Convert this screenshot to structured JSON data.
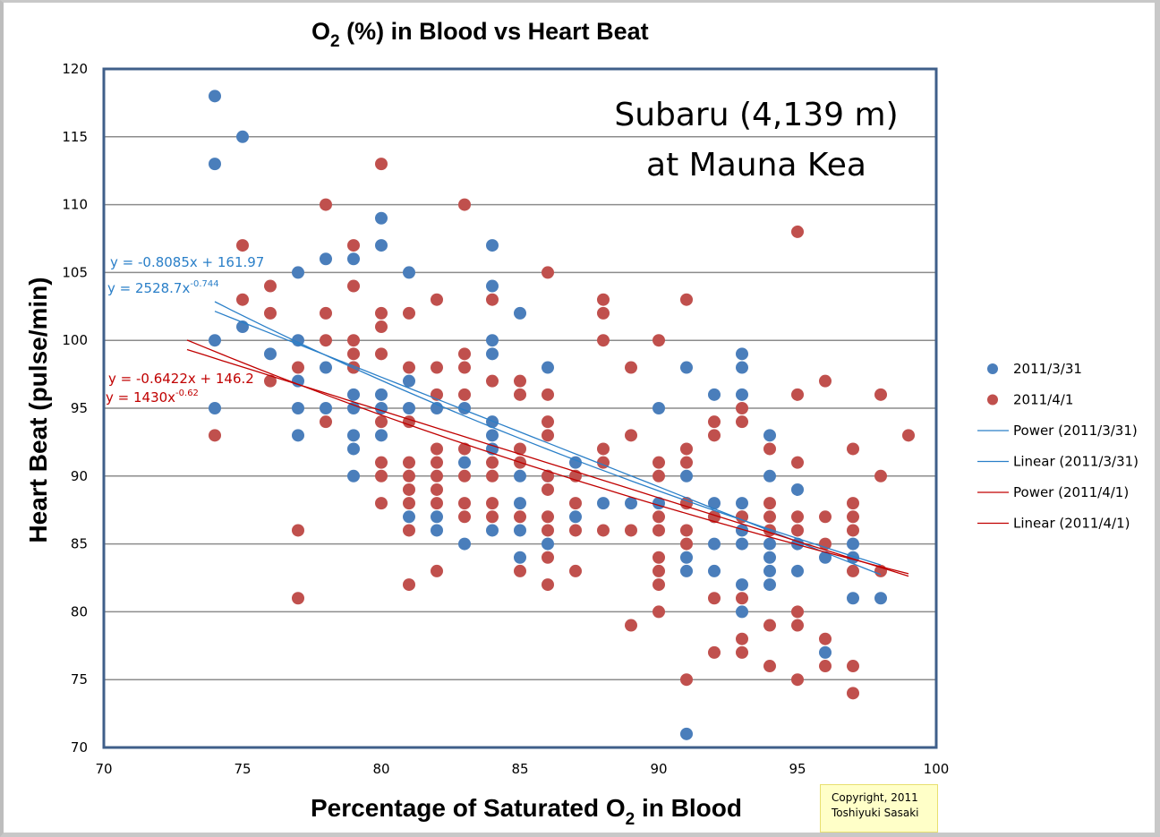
{
  "chart_data": {
    "type": "scatter",
    "title": "O2 (%) in Blood vs Heart Beat",
    "title_parts": {
      "pre": "O",
      "sub": "2",
      "post": " (%) in Blood vs Heart Beat"
    },
    "xlabel": "Percentage of Saturated O2 in Blood",
    "xlabel_parts": {
      "pre": "Percentage of  Saturated  O",
      "sub": "2",
      "post": "  in  Blood"
    },
    "ylabel": "Heart Beat (pulse/min)",
    "xlim": [
      70,
      100
    ],
    "ylim": [
      70,
      120
    ],
    "xticks": [
      "70",
      "75",
      "80",
      "85",
      "90",
      "95",
      "100"
    ],
    "yticks": [
      "70",
      "75",
      "80",
      "85",
      "90",
      "95",
      "100",
      "105",
      "110",
      "115",
      "120"
    ],
    "grid": "horizontal",
    "legend_position": "right",
    "annotation": {
      "line1": "Subaru (4,139 m)",
      "line2": "at Mauna Kea"
    },
    "series": [
      {
        "name": "2011/3/31",
        "color": "#4a7ebb",
        "points": [
          [
            74,
            118
          ],
          [
            74,
            113
          ],
          [
            74,
            100
          ],
          [
            74,
            95
          ],
          [
            75,
            115
          ],
          [
            75,
            101
          ],
          [
            76,
            99
          ],
          [
            77,
            105
          ],
          [
            77,
            100
          ],
          [
            77,
            97
          ],
          [
            77,
            95
          ],
          [
            77,
            93
          ],
          [
            78,
            106
          ],
          [
            78,
            98
          ],
          [
            78,
            95
          ],
          [
            79,
            106
          ],
          [
            79,
            98
          ],
          [
            79,
            96
          ],
          [
            79,
            95
          ],
          [
            79,
            93
          ],
          [
            79,
            92
          ],
          [
            79,
            90
          ],
          [
            80,
            109
          ],
          [
            80,
            107
          ],
          [
            80,
            96
          ],
          [
            80,
            95
          ],
          [
            80,
            93
          ],
          [
            81,
            105
          ],
          [
            81,
            97
          ],
          [
            81,
            95
          ],
          [
            81,
            87
          ],
          [
            82,
            95
          ],
          [
            82,
            87
          ],
          [
            82,
            86
          ],
          [
            83,
            95
          ],
          [
            83,
            91
          ],
          [
            83,
            85
          ],
          [
            84,
            107
          ],
          [
            84,
            104
          ],
          [
            84,
            100
          ],
          [
            84,
            99
          ],
          [
            84,
            94
          ],
          [
            84,
            93
          ],
          [
            84,
            92
          ],
          [
            84,
            86
          ],
          [
            85,
            102
          ],
          [
            85,
            90
          ],
          [
            85,
            88
          ],
          [
            85,
            86
          ],
          [
            85,
            84
          ],
          [
            86,
            98
          ],
          [
            86,
            90
          ],
          [
            86,
            85
          ],
          [
            87,
            91
          ],
          [
            87,
            87
          ],
          [
            88,
            88
          ],
          [
            89,
            88
          ],
          [
            90,
            95
          ],
          [
            90,
            88
          ],
          [
            91,
            98
          ],
          [
            91,
            90
          ],
          [
            91,
            88
          ],
          [
            91,
            84
          ],
          [
            91,
            83
          ],
          [
            91,
            71
          ],
          [
            92,
            96
          ],
          [
            92,
            88
          ],
          [
            92,
            87
          ],
          [
            92,
            85
          ],
          [
            92,
            83
          ],
          [
            93,
            99
          ],
          [
            93,
            98
          ],
          [
            93,
            96
          ],
          [
            93,
            88
          ],
          [
            93,
            87
          ],
          [
            93,
            86
          ],
          [
            93,
            85
          ],
          [
            93,
            82
          ],
          [
            93,
            80
          ],
          [
            94,
            93
          ],
          [
            94,
            90
          ],
          [
            94,
            85
          ],
          [
            94,
            84
          ],
          [
            94,
            83
          ],
          [
            94,
            82
          ],
          [
            95,
            89
          ],
          [
            95,
            85
          ],
          [
            95,
            83
          ],
          [
            96,
            84
          ],
          [
            96,
            77
          ],
          [
            97,
            85
          ],
          [
            97,
            84
          ],
          [
            97,
            81
          ],
          [
            98,
            81
          ]
        ]
      },
      {
        "name": "2011/4/1",
        "color": "#c0504d",
        "points": [
          [
            74,
            93
          ],
          [
            75,
            107
          ],
          [
            75,
            103
          ],
          [
            76,
            104
          ],
          [
            76,
            102
          ],
          [
            76,
            97
          ],
          [
            77,
            98
          ],
          [
            77,
            86
          ],
          [
            77,
            81
          ],
          [
            78,
            110
          ],
          [
            78,
            102
          ],
          [
            78,
            100
          ],
          [
            78,
            94
          ],
          [
            79,
            107
          ],
          [
            79,
            104
          ],
          [
            79,
            100
          ],
          [
            79,
            99
          ],
          [
            79,
            98
          ],
          [
            80,
            113
          ],
          [
            80,
            102
          ],
          [
            80,
            101
          ],
          [
            80,
            99
          ],
          [
            80,
            94
          ],
          [
            80,
            91
          ],
          [
            80,
            90
          ],
          [
            80,
            88
          ],
          [
            81,
            102
          ],
          [
            81,
            98
          ],
          [
            81,
            94
          ],
          [
            81,
            91
          ],
          [
            81,
            90
          ],
          [
            81,
            89
          ],
          [
            81,
            88
          ],
          [
            81,
            86
          ],
          [
            81,
            82
          ],
          [
            82,
            103
          ],
          [
            82,
            98
          ],
          [
            82,
            96
          ],
          [
            82,
            92
          ],
          [
            82,
            91
          ],
          [
            82,
            90
          ],
          [
            82,
            89
          ],
          [
            82,
            88
          ],
          [
            82,
            83
          ],
          [
            83,
            110
          ],
          [
            83,
            99
          ],
          [
            83,
            98
          ],
          [
            83,
            96
          ],
          [
            83,
            92
          ],
          [
            83,
            90
          ],
          [
            83,
            88
          ],
          [
            83,
            87
          ],
          [
            84,
            103
          ],
          [
            84,
            97
          ],
          [
            84,
            91
          ],
          [
            84,
            90
          ],
          [
            84,
            88
          ],
          [
            84,
            87
          ],
          [
            85,
            97
          ],
          [
            85,
            96
          ],
          [
            85,
            92
          ],
          [
            85,
            91
          ],
          [
            85,
            87
          ],
          [
            85,
            83
          ],
          [
            86,
            105
          ],
          [
            86,
            96
          ],
          [
            86,
            94
          ],
          [
            86,
            93
          ],
          [
            86,
            90
          ],
          [
            86,
            89
          ],
          [
            86,
            87
          ],
          [
            86,
            86
          ],
          [
            86,
            84
          ],
          [
            86,
            82
          ],
          [
            87,
            90
          ],
          [
            87,
            88
          ],
          [
            87,
            86
          ],
          [
            87,
            83
          ],
          [
            88,
            103
          ],
          [
            88,
            102
          ],
          [
            88,
            100
          ],
          [
            88,
            92
          ],
          [
            88,
            91
          ],
          [
            88,
            86
          ],
          [
            89,
            98
          ],
          [
            89,
            93
          ],
          [
            89,
            86
          ],
          [
            89,
            79
          ],
          [
            90,
            100
          ],
          [
            90,
            91
          ],
          [
            90,
            90
          ],
          [
            90,
            87
          ],
          [
            90,
            86
          ],
          [
            90,
            84
          ],
          [
            90,
            83
          ],
          [
            90,
            82
          ],
          [
            90,
            80
          ],
          [
            91,
            103
          ],
          [
            91,
            92
          ],
          [
            91,
            91
          ],
          [
            91,
            88
          ],
          [
            91,
            86
          ],
          [
            91,
            85
          ],
          [
            91,
            75
          ],
          [
            92,
            94
          ],
          [
            92,
            93
          ],
          [
            92,
            87
          ],
          [
            92,
            81
          ],
          [
            92,
            77
          ],
          [
            93,
            95
          ],
          [
            93,
            94
          ],
          [
            93,
            87
          ],
          [
            93,
            81
          ],
          [
            93,
            78
          ],
          [
            93,
            77
          ],
          [
            94,
            92
          ],
          [
            94,
            88
          ],
          [
            94,
            87
          ],
          [
            94,
            86
          ],
          [
            94,
            79
          ],
          [
            94,
            76
          ],
          [
            95,
            108
          ],
          [
            95,
            96
          ],
          [
            95,
            91
          ],
          [
            95,
            87
          ],
          [
            95,
            86
          ],
          [
            95,
            80
          ],
          [
            95,
            79
          ],
          [
            95,
            75
          ],
          [
            96,
            97
          ],
          [
            96,
            87
          ],
          [
            96,
            85
          ],
          [
            96,
            78
          ],
          [
            96,
            76
          ],
          [
            97,
            92
          ],
          [
            97,
            88
          ],
          [
            97,
            87
          ],
          [
            97,
            86
          ],
          [
            97,
            83
          ],
          [
            97,
            76
          ],
          [
            97,
            74
          ],
          [
            98,
            96
          ],
          [
            98,
            90
          ],
          [
            98,
            83
          ],
          [
            99,
            93
          ]
        ]
      }
    ],
    "trendlines": [
      {
        "name": "Power (2011/3/31)",
        "type": "power",
        "a": 2528.7,
        "b": -0.744,
        "color": "#2a7fc8",
        "x_range": [
          74,
          98
        ],
        "label": "y = 2528.7x",
        "label_exp": "-0.744"
      },
      {
        "name": "Linear (2011/3/31)",
        "type": "linear",
        "slope": -0.8085,
        "intercept": 161.97,
        "color": "#2a7fc8",
        "x_range": [
          74,
          98
        ],
        "label": "y = -0.8085x + 161.97"
      },
      {
        "name": "Power (2011/4/1)",
        "type": "power",
        "a": 1430,
        "b": -0.62,
        "color": "#c00000",
        "x_range": [
          73,
          99
        ],
        "label": "y = 1430x",
        "label_exp": "-0.62"
      },
      {
        "name": "Linear (2011/4/1)",
        "type": "linear",
        "slope": -0.6422,
        "intercept": 146.2,
        "color": "#c00000",
        "x_range": [
          73,
          99
        ],
        "label": "y = -0.6422x + 146.2"
      }
    ],
    "legend": [
      {
        "label": "2011/3/31",
        "kind": "marker",
        "color": "#4a7ebb"
      },
      {
        "label": "2011/4/1",
        "kind": "marker",
        "color": "#c0504d"
      },
      {
        "label": "Power (2011/3/31)",
        "kind": "line",
        "color": "#2a7fc8"
      },
      {
        "label": "Linear (2011/3/31)",
        "kind": "line",
        "color": "#2a7fc8"
      },
      {
        "label": "Power (2011/4/1)",
        "kind": "line",
        "color": "#c00000"
      },
      {
        "label": "Linear (2011/4/1)",
        "kind": "line",
        "color": "#c00000"
      }
    ]
  },
  "copyright": {
    "line1": "Copyright, 2011",
    "line2": "Toshiyuki Sasaki"
  }
}
